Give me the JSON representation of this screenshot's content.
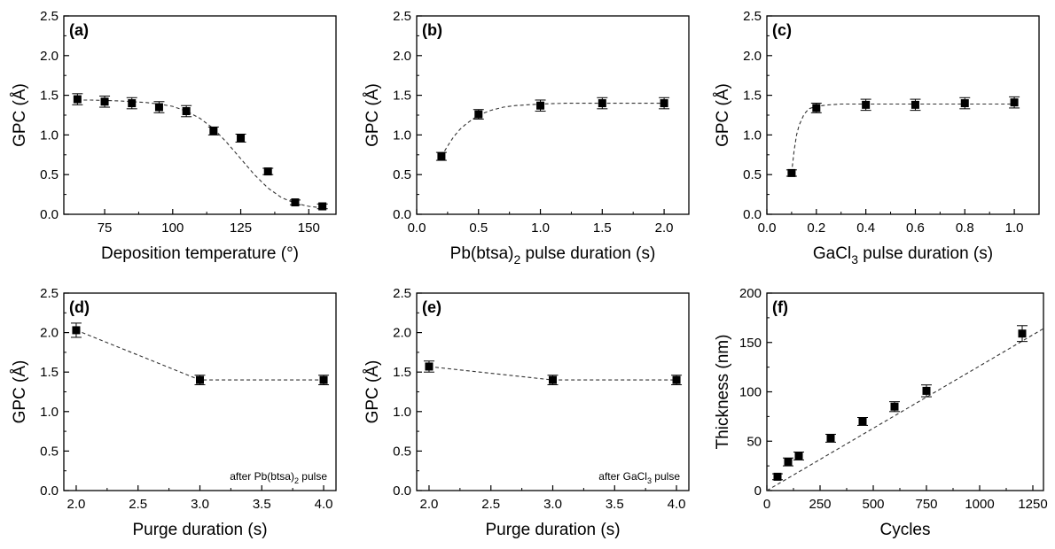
{
  "chart_data": [
    {
      "type": "scatter",
      "panel": "(a)",
      "xlabel": "Deposition temperature (°)",
      "ylabel": "GPC (Å)",
      "xlim": [
        60,
        160
      ],
      "ylim": [
        0,
        2.5
      ],
      "xticks": [
        75,
        100,
        125,
        150
      ],
      "xtick_labels": [
        "75",
        "100",
        "125",
        "150"
      ],
      "yticks": [
        0,
        0.5,
        1,
        1.5,
        2,
        2.5
      ],
      "ytick_labels": [
        "0.0",
        "0.5",
        "1.0",
        "1.5",
        "2.0",
        "2.5"
      ],
      "points": [
        {
          "x": 65,
          "y": 1.45,
          "err": 0.07
        },
        {
          "x": 75,
          "y": 1.42,
          "err": 0.07
        },
        {
          "x": 85,
          "y": 1.4,
          "err": 0.07
        },
        {
          "x": 95,
          "y": 1.35,
          "err": 0.07
        },
        {
          "x": 105,
          "y": 1.3,
          "err": 0.07
        },
        {
          "x": 115,
          "y": 1.05,
          "err": 0.05
        },
        {
          "x": 125,
          "y": 0.96,
          "err": 0.05
        },
        {
          "x": 135,
          "y": 0.54,
          "err": 0.04
        },
        {
          "x": 145,
          "y": 0.15,
          "err": 0.03
        },
        {
          "x": 155,
          "y": 0.1,
          "err": 0.03
        }
      ],
      "fit_line": {
        "style": "dashed",
        "x": [
          65,
          70,
          75,
          80,
          85,
          90,
          95,
          100,
          105,
          110,
          115,
          120,
          125,
          130,
          135,
          140,
          145,
          150,
          155
        ],
        "y": [
          1.44,
          1.44,
          1.435,
          1.43,
          1.42,
          1.41,
          1.39,
          1.36,
          1.3,
          1.21,
          1.08,
          0.9,
          0.7,
          0.5,
          0.33,
          0.21,
          0.14,
          0.1,
          0.08
        ]
      },
      "note": ""
    },
    {
      "type": "scatter",
      "panel": "(b)",
      "xlabel": "Pb(btsa)",
      "xlabel_sub": "2",
      "xlabel_tail": " pulse duration (s)",
      "ylabel": "GPC (Å)",
      "xlim": [
        0,
        2.2
      ],
      "ylim": [
        0,
        2.5
      ],
      "xticks": [
        0,
        0.5,
        1,
        1.5,
        2
      ],
      "xtick_labels": [
        "0.0",
        "0.5",
        "1.0",
        "1.5",
        "2.0"
      ],
      "yticks": [
        0,
        0.5,
        1,
        1.5,
        2,
        2.5
      ],
      "ytick_labels": [
        "0.0",
        "0.5",
        "1.0",
        "1.5",
        "2.0",
        "2.5"
      ],
      "points": [
        {
          "x": 0.2,
          "y": 0.73,
          "err": 0.05
        },
        {
          "x": 0.5,
          "y": 1.26,
          "err": 0.06
        },
        {
          "x": 1.0,
          "y": 1.37,
          "err": 0.07
        },
        {
          "x": 1.5,
          "y": 1.4,
          "err": 0.07
        },
        {
          "x": 2.0,
          "y": 1.4,
          "err": 0.07
        }
      ],
      "fit_line": {
        "style": "dashed",
        "x": [
          0.2,
          0.25,
          0.3,
          0.35,
          0.4,
          0.5,
          0.6,
          0.7,
          0.8,
          1.0,
          1.2,
          1.5,
          2.0
        ],
        "y": [
          0.73,
          0.86,
          0.98,
          1.07,
          1.14,
          1.25,
          1.31,
          1.35,
          1.37,
          1.39,
          1.4,
          1.4,
          1.4
        ]
      },
      "note": ""
    },
    {
      "type": "scatter",
      "panel": "(c)",
      "xlabel": "GaCl",
      "xlabel_sub": "3",
      "xlabel_tail": " pulse duration (s)",
      "ylabel": "GPC (Å)",
      "xlim": [
        0,
        1.1
      ],
      "ylim": [
        0,
        2.5
      ],
      "xticks": [
        0,
        0.2,
        0.4,
        0.6,
        0.8,
        1
      ],
      "xtick_labels": [
        "0.0",
        "0.2",
        "0.4",
        "0.6",
        "0.8",
        "1.0"
      ],
      "yticks": [
        0,
        0.5,
        1,
        1.5,
        2,
        2.5
      ],
      "ytick_labels": [
        "0.0",
        "0.5",
        "1.0",
        "1.5",
        "2.0",
        "2.5"
      ],
      "points": [
        {
          "x": 0.1,
          "y": 0.52,
          "err": 0.04
        },
        {
          "x": 0.2,
          "y": 1.34,
          "err": 0.06
        },
        {
          "x": 0.4,
          "y": 1.38,
          "err": 0.07
        },
        {
          "x": 0.6,
          "y": 1.38,
          "err": 0.07
        },
        {
          "x": 0.8,
          "y": 1.4,
          "err": 0.07
        },
        {
          "x": 1.0,
          "y": 1.41,
          "err": 0.07
        }
      ],
      "fit_line": {
        "style": "dashed",
        "x": [
          0.1,
          0.11,
          0.12,
          0.13,
          0.15,
          0.17,
          0.2,
          0.25,
          0.3,
          0.4,
          0.6,
          0.8,
          1.0
        ],
        "y": [
          0.52,
          0.8,
          1.0,
          1.12,
          1.26,
          1.33,
          1.36,
          1.38,
          1.39,
          1.39,
          1.39,
          1.39,
          1.39
        ]
      },
      "note": ""
    },
    {
      "type": "scatter",
      "panel": "(d)",
      "xlabel": "Purge duration (s)",
      "ylabel": "GPC (Å)",
      "xlim": [
        1.9,
        4.1
      ],
      "ylim": [
        0,
        2.5
      ],
      "xticks": [
        2,
        2.5,
        3,
        3.5,
        4
      ],
      "xtick_labels": [
        "2.0",
        "2.5",
        "3.0",
        "3.5",
        "4.0"
      ],
      "yticks": [
        0,
        0.5,
        1,
        1.5,
        2,
        2.5
      ],
      "ytick_labels": [
        "0.0",
        "0.5",
        "1.0",
        "1.5",
        "2.0",
        "2.5"
      ],
      "points": [
        {
          "x": 2.0,
          "y": 2.03,
          "err": 0.09
        },
        {
          "x": 3.0,
          "y": 1.4,
          "err": 0.06
        },
        {
          "x": 4.0,
          "y": 1.4,
          "err": 0.06
        }
      ],
      "fit_line": {
        "style": "dashed",
        "x": [
          2.0,
          3.0,
          4.0
        ],
        "y": [
          2.03,
          1.4,
          1.4
        ]
      },
      "note": "after Pb(btsa)",
      "note_sub": "2",
      "note_tail": " pulse"
    },
    {
      "type": "scatter",
      "panel": "(e)",
      "xlabel": "Purge duration (s)",
      "ylabel": "GPC (Å)",
      "xlim": [
        1.9,
        4.1
      ],
      "ylim": [
        0,
        2.5
      ],
      "xticks": [
        2,
        2.5,
        3,
        3.5,
        4
      ],
      "xtick_labels": [
        "2.0",
        "2.5",
        "3.0",
        "3.5",
        "4.0"
      ],
      "yticks": [
        0,
        0.5,
        1,
        1.5,
        2,
        2.5
      ],
      "ytick_labels": [
        "0.0",
        "0.5",
        "1.0",
        "1.5",
        "2.0",
        "2.5"
      ],
      "points": [
        {
          "x": 2.0,
          "y": 1.57,
          "err": 0.07
        },
        {
          "x": 3.0,
          "y": 1.4,
          "err": 0.06
        },
        {
          "x": 4.0,
          "y": 1.4,
          "err": 0.06
        }
      ],
      "fit_line": {
        "style": "dashed",
        "x": [
          2.0,
          3.0,
          4.0
        ],
        "y": [
          1.57,
          1.4,
          1.4
        ]
      },
      "note": "after GaCl",
      "note_sub": "3",
      "note_tail": " pulse"
    },
    {
      "type": "scatter",
      "panel": "(f)",
      "xlabel": "Cycles",
      "ylabel": "Thickness (nm)",
      "xlim": [
        0,
        1300
      ],
      "ylim": [
        0,
        200
      ],
      "xticks": [
        0,
        250,
        500,
        750,
        1000,
        1250
      ],
      "xtick_labels": [
        "0",
        "250",
        "500",
        "750",
        "1000",
        "1250"
      ],
      "yticks": [
        0,
        50,
        100,
        150,
        200
      ],
      "ytick_labels": [
        "0",
        "50",
        "100",
        "150",
        "200"
      ],
      "points": [
        {
          "x": 50,
          "y": 14,
          "err": 3
        },
        {
          "x": 100,
          "y": 29,
          "err": 4
        },
        {
          "x": 150,
          "y": 35,
          "err": 4
        },
        {
          "x": 300,
          "y": 53,
          "err": 4
        },
        {
          "x": 450,
          "y": 70,
          "err": 4
        },
        {
          "x": 600,
          "y": 85,
          "err": 5
        },
        {
          "x": 750,
          "y": 101,
          "err": 6
        },
        {
          "x": 1200,
          "y": 159,
          "err": 8
        }
      ],
      "fit_line": {
        "style": "dashed",
        "x": [
          0,
          1300
        ],
        "y": [
          0,
          164
        ]
      },
      "note": ""
    }
  ]
}
